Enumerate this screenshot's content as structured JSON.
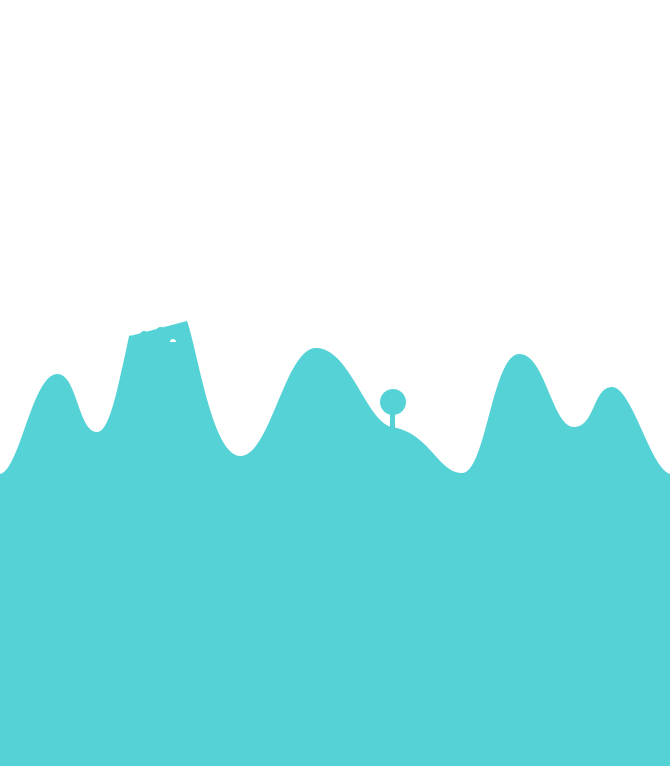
{
  "scene": {
    "background_color": "#ffffff",
    "terrain_color": "#55d2d6",
    "elements": [
      "terrain",
      "castle",
      "tree"
    ]
  }
}
